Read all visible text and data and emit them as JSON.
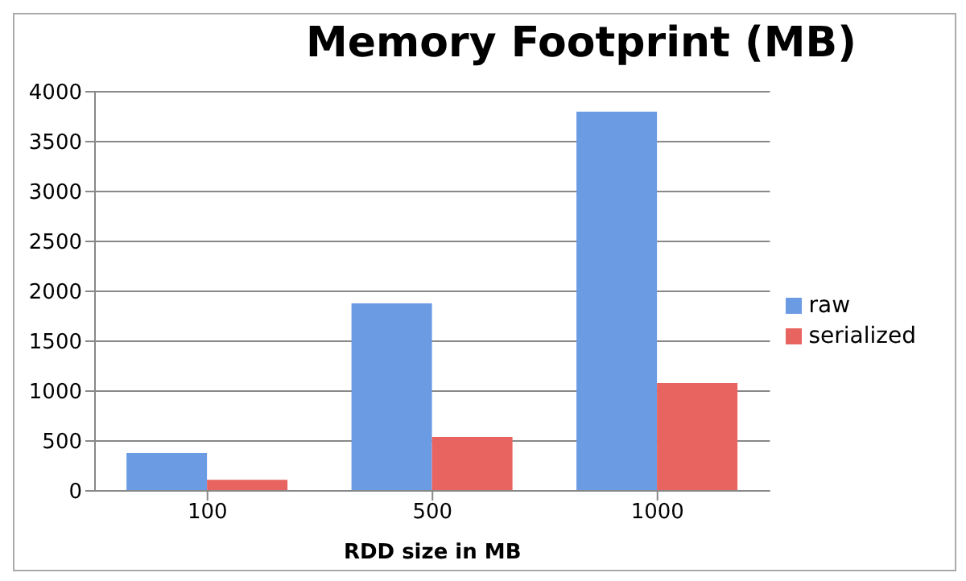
{
  "chart_data": {
    "type": "bar",
    "title": "Memory Footprint (MB)",
    "xlabel": "RDD size in MB",
    "categories": [
      "100",
      "500",
      "1000"
    ],
    "series": [
      {
        "name": "raw",
        "color": "#6a9be3",
        "values": [
          380,
          1880,
          3800
        ]
      },
      {
        "name": "serialized",
        "color": "#e86460",
        "values": [
          110,
          540,
          1080
        ]
      }
    ],
    "ylim": [
      0,
      4000
    ],
    "yticks": [
      0,
      500,
      1000,
      1500,
      2000,
      2500,
      3000,
      3500,
      4000
    ],
    "grid": "y",
    "legend": "right"
  }
}
